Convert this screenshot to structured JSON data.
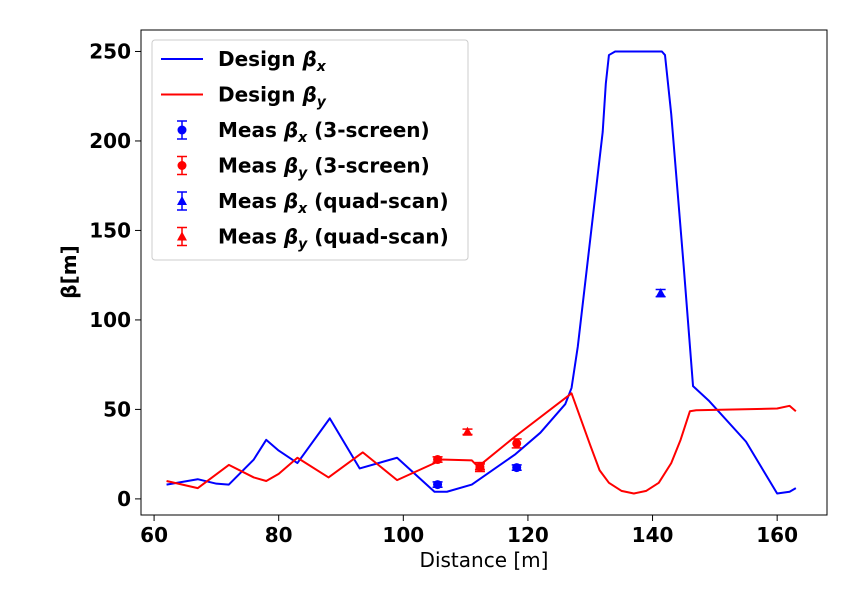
{
  "chart_data": {
    "type": "line",
    "title": "",
    "xlabel": "Distance [m]",
    "ylabel": "β[m]",
    "xlim": [
      57.9,
      168.0
    ],
    "ylim": [
      -9,
      262
    ],
    "xticks": [
      60,
      80,
      100,
      120,
      140,
      160
    ],
    "yticks": [
      0,
      50,
      100,
      150,
      200,
      250
    ],
    "grid": false,
    "legend_position": "top-left",
    "colors": {
      "blue": "#0000ff",
      "red": "#ff0000"
    },
    "legend": [
      {
        "key": "design_bx",
        "prefix": "Design ",
        "sub": "x",
        "suffix": "",
        "color": "#0000ff",
        "marker": "line"
      },
      {
        "key": "design_by",
        "prefix": "Design ",
        "sub": "y",
        "suffix": "",
        "color": "#ff0000",
        "marker": "line"
      },
      {
        "key": "meas_bx_3s",
        "prefix": "Meas ",
        "sub": "x",
        "suffix": " (3-screen)",
        "color": "#0000ff",
        "marker": "circle"
      },
      {
        "key": "meas_by_3s",
        "prefix": "Meas ",
        "sub": "y",
        "suffix": " (3-screen)",
        "color": "#ff0000",
        "marker": "circle"
      },
      {
        "key": "meas_bx_qs",
        "prefix": "Meas ",
        "sub": "x",
        "suffix": " (quad-scan)",
        "color": "#0000ff",
        "marker": "triangle"
      },
      {
        "key": "meas_by_qs",
        "prefix": "Meas ",
        "sub": "y",
        "suffix": " (quad-scan)",
        "color": "#ff0000",
        "marker": "triangle"
      }
    ],
    "series": [
      {
        "key": "design_bx",
        "color": "#0000ff",
        "x": [
          62.0,
          67.0,
          70.0,
          72.0,
          76.0,
          78.0,
          80.0,
          83.0,
          88.2,
          93.0,
          99.0,
          105.0,
          107.0,
          111.0,
          118.0,
          122.0,
          126.0,
          127.0,
          128.0,
          130.0,
          131.0,
          132.0,
          132.5,
          133.0,
          134.0,
          138.0,
          141.0,
          141.5,
          142.0,
          143.0,
          145.0,
          146.5,
          149.0,
          155.0,
          160.0,
          162.0,
          163.0
        ],
        "y": [
          8,
          11,
          8.5,
          8,
          22,
          33,
          27,
          20,
          45,
          17,
          23,
          4,
          4,
          8,
          25,
          37,
          53,
          62,
          85,
          145,
          175,
          205,
          232,
          248,
          250,
          250,
          250,
          250,
          248,
          215,
          130,
          63,
          55,
          32,
          3,
          4,
          6
        ]
      },
      {
        "key": "design_by",
        "color": "#ff0000",
        "x": [
          62.0,
          67.0,
          72.0,
          76.0,
          78.0,
          80.0,
          83.0,
          88.0,
          93.5,
          99.0,
          105.0,
          106.0,
          111.0,
          112.0,
          118.0,
          127.0,
          130.0,
          131.5,
          133.0,
          135.0,
          137.0,
          139.0,
          141.0,
          143.0,
          144.5,
          146.0,
          147.0,
          160.0,
          162.0,
          163.0
        ],
        "y": [
          10,
          6,
          19,
          12,
          10,
          14,
          23,
          12,
          26,
          10.5,
          20,
          22,
          21.5,
          18,
          35,
          59,
          30,
          16,
          9,
          4.5,
          3,
          4.5,
          9,
          20,
          33,
          49,
          49.5,
          50.5,
          52,
          49
        ]
      }
    ],
    "measurements": [
      {
        "key": "meas_bx_3s",
        "color": "#0000ff",
        "marker": "circle",
        "points": [
          {
            "x": 105.5,
            "y": 8,
            "err": 1.5
          },
          {
            "x": 118.2,
            "y": 17.5,
            "err": 1.5
          }
        ]
      },
      {
        "key": "meas_by_3s",
        "color": "#ff0000",
        "marker": "circle",
        "points": [
          {
            "x": 105.5,
            "y": 22,
            "err": 1.5
          },
          {
            "x": 112.3,
            "y": 17.8,
            "err": 2.5
          },
          {
            "x": 118.2,
            "y": 31,
            "err": 2.5
          }
        ]
      },
      {
        "key": "meas_bx_qs",
        "color": "#0000ff",
        "marker": "triangle",
        "points": [
          {
            "x": 141.3,
            "y": 115,
            "err": 2
          }
        ]
      },
      {
        "key": "meas_by_qs",
        "color": "#ff0000",
        "marker": "triangle",
        "points": [
          {
            "x": 110.3,
            "y": 37.5,
            "err": 1.5
          },
          {
            "x": 112.3,
            "y": 18,
            "err": 1.5
          }
        ]
      }
    ]
  }
}
